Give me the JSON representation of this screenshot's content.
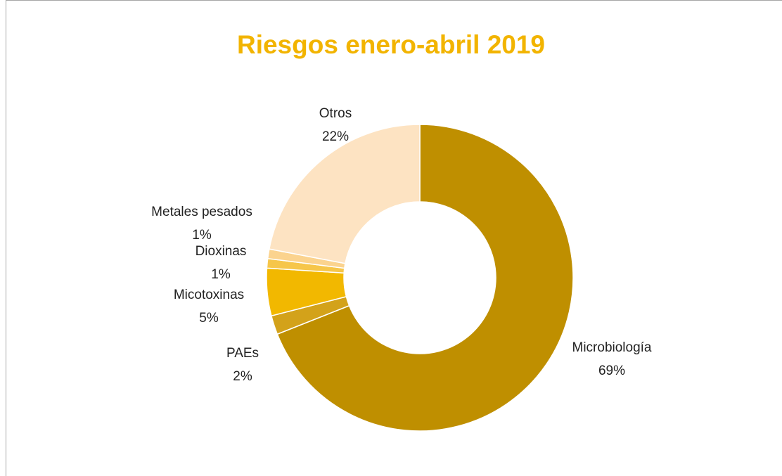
{
  "chart_data": {
    "type": "donut",
    "title": "Riesgos enero-abril 2019",
    "categories": [
      "Microbiología",
      "PAEs",
      "Micotoxinas",
      "Dioxinas",
      "Metales pesados",
      "Otros"
    ],
    "values": [
      69,
      2,
      5,
      1,
      1,
      22
    ],
    "value_labels": [
      "69%",
      "2%",
      "5%",
      "1%",
      "1%",
      "22%"
    ],
    "colors": [
      "#bf8f00",
      "#d3a21a",
      "#f2b800",
      "#f6c64a",
      "#fbd38e",
      "#fde3c2"
    ]
  }
}
